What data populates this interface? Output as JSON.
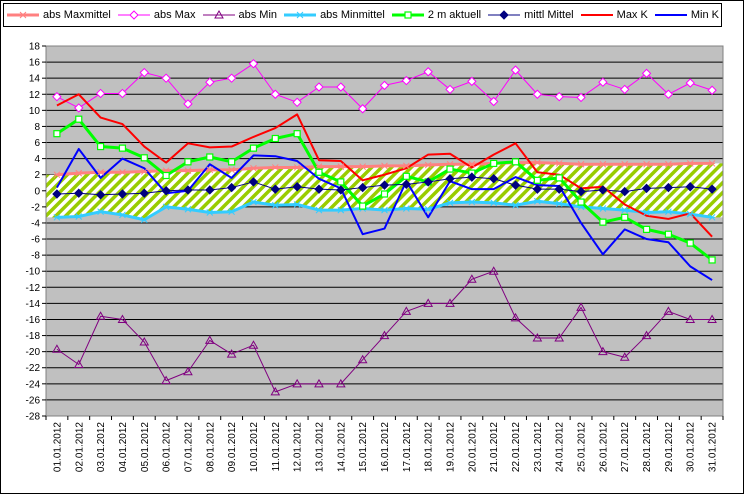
{
  "chart_data": {
    "type": "line",
    "title": "",
    "xlabel": "",
    "ylabel": "",
    "ylim": [
      -28,
      18
    ],
    "ytick_step": 2,
    "grid": "horizontal",
    "legend_position": "top",
    "plot_background": "#c0c0c0",
    "band_colors": {
      "hatch": "#99cc00",
      "fill": "#ffffff"
    },
    "categories": [
      "01.01.2012",
      "02.01.2012",
      "03.01.2012",
      "04.01.2012",
      "05.01.2012",
      "06.01.2012",
      "07.01.2012",
      "08.01.2012",
      "09.01.2012",
      "10.01.2012",
      "11.01.2012",
      "12.01.2012",
      "13.01.2012",
      "14.01.2012",
      "15.01.2012",
      "16.01.2012",
      "17.01.2012",
      "18.01.2012",
      "19.01.2012",
      "20.01.2012",
      "21.01.2012",
      "22.01.2012",
      "23.01.2012",
      "24.01.2012",
      "25.01.2012",
      "26.01.2012",
      "27.01.2012",
      "28.01.2012",
      "29.01.2012",
      "30.01.2012",
      "31.01.2012"
    ],
    "series": [
      {
        "name": "abs Maxmittel",
        "color": "#ff8080",
        "marker": "asterisk",
        "width": 3,
        "values": [
          2.0,
          2.2,
          2.3,
          2.3,
          2.4,
          2.5,
          2.5,
          2.6,
          2.6,
          2.8,
          2.9,
          2.9,
          3.0,
          3.0,
          3.0,
          3.1,
          3.1,
          3.2,
          3.3,
          3.3,
          3.4,
          3.5,
          3.5,
          3.4,
          3.3,
          3.3,
          3.3,
          3.3,
          3.3,
          3.4,
          3.4
        ]
      },
      {
        "name": "abs Max",
        "color": "#ff00ff",
        "marker": "diamond-open",
        "width": 1,
        "values": [
          11.7,
          10.3,
          12.1,
          12.1,
          14.7,
          14.0,
          10.8,
          13.5,
          14.0,
          15.8,
          12.0,
          11.0,
          12.9,
          12.9,
          10.2,
          13.1,
          13.7,
          14.8,
          12.6,
          13.6,
          11.1,
          15.0,
          12.0,
          11.7,
          11.6,
          13.5,
          12.6,
          14.6,
          12.0,
          13.4,
          12.5
        ]
      },
      {
        "name": "abs Min",
        "color": "#800080",
        "marker": "triangle-open",
        "width": 1,
        "values": [
          -19.7,
          -21.6,
          -15.6,
          -16.0,
          -18.8,
          -23.6,
          -22.5,
          -18.6,
          -20.3,
          -19.2,
          -25.0,
          -24.0,
          -24.0,
          -24.0,
          -21.0,
          -18.0,
          -15.0,
          -14.0,
          -14.0,
          -11.0,
          -10.0,
          -15.8,
          -18.3,
          -18.3,
          -14.5,
          -20.0,
          -20.7,
          -18.0,
          -15.0,
          -16.0,
          -16.0
        ]
      },
      {
        "name": "abs Minmittel",
        "color": "#33ccff",
        "marker": "asterisk",
        "width": 3,
        "values": [
          -3.3,
          -3.2,
          -2.6,
          -3.0,
          -3.6,
          -2.0,
          -2.3,
          -2.7,
          -2.6,
          -1.4,
          -1.8,
          -1.7,
          -2.4,
          -2.4,
          -2.2,
          -2.4,
          -2.2,
          -2.3,
          -1.5,
          -1.4,
          -1.5,
          -1.8,
          -1.3,
          -1.6,
          -2.0,
          -2.2,
          -2.4,
          -2.7,
          -2.6,
          -2.9,
          -3.3
        ]
      },
      {
        "name": "2 m aktuell",
        "color": "#00ff00",
        "marker": "square-open",
        "width": 3,
        "values": [
          7.1,
          8.9,
          5.5,
          5.3,
          4.1,
          1.9,
          3.6,
          4.2,
          3.6,
          5.3,
          6.5,
          7.1,
          2.3,
          1.1,
          -1.9,
          -0.4,
          1.8,
          1.1,
          2.7,
          2.2,
          3.4,
          3.6,
          1.3,
          1.6,
          -1.4,
          -3.9,
          -3.3,
          -4.8,
          -5.4,
          -6.5,
          -8.6
        ]
      },
      {
        "name": "mittl Mittel",
        "color": "#000080",
        "marker": "diamond-filled",
        "width": 1,
        "values": [
          -0.4,
          -0.3,
          -0.5,
          -0.4,
          -0.3,
          0.0,
          0.1,
          0.1,
          0.4,
          1.1,
          0.2,
          0.5,
          0.2,
          0.1,
          0.4,
          0.7,
          0.8,
          1.1,
          1.5,
          1.7,
          1.5,
          0.7,
          0.2,
          0.2,
          -0.1,
          0.1,
          -0.1,
          0.3,
          0.4,
          0.5,
          0.2
        ]
      },
      {
        "name": "Max K",
        "color": "#ff0000",
        "marker": "none",
        "width": 2,
        "values": [
          10.6,
          12.0,
          9.1,
          8.3,
          5.5,
          3.5,
          5.9,
          5.4,
          5.5,
          6.7,
          7.8,
          9.5,
          3.8,
          3.7,
          1.3,
          2.0,
          2.8,
          4.5,
          4.6,
          2.9,
          4.5,
          5.9,
          2.3,
          2.0,
          0.3,
          0.5,
          -1.7,
          -3.1,
          -3.5,
          -2.8,
          -5.7
        ]
      },
      {
        "name": "Min K",
        "color": "#0000ff",
        "marker": "none",
        "width": 2,
        "values": [
          0.4,
          5.2,
          1.6,
          4.0,
          2.8,
          -0.3,
          0.0,
          3.3,
          1.6,
          4.4,
          4.3,
          3.7,
          1.5,
          0.3,
          -5.4,
          -4.7,
          1.2,
          -3.3,
          1.2,
          0.2,
          0.2,
          1.7,
          0.7,
          0.6,
          -4.0,
          -7.9,
          -4.8,
          -6.0,
          -6.4,
          -9.4,
          -11.1
        ]
      }
    ]
  }
}
